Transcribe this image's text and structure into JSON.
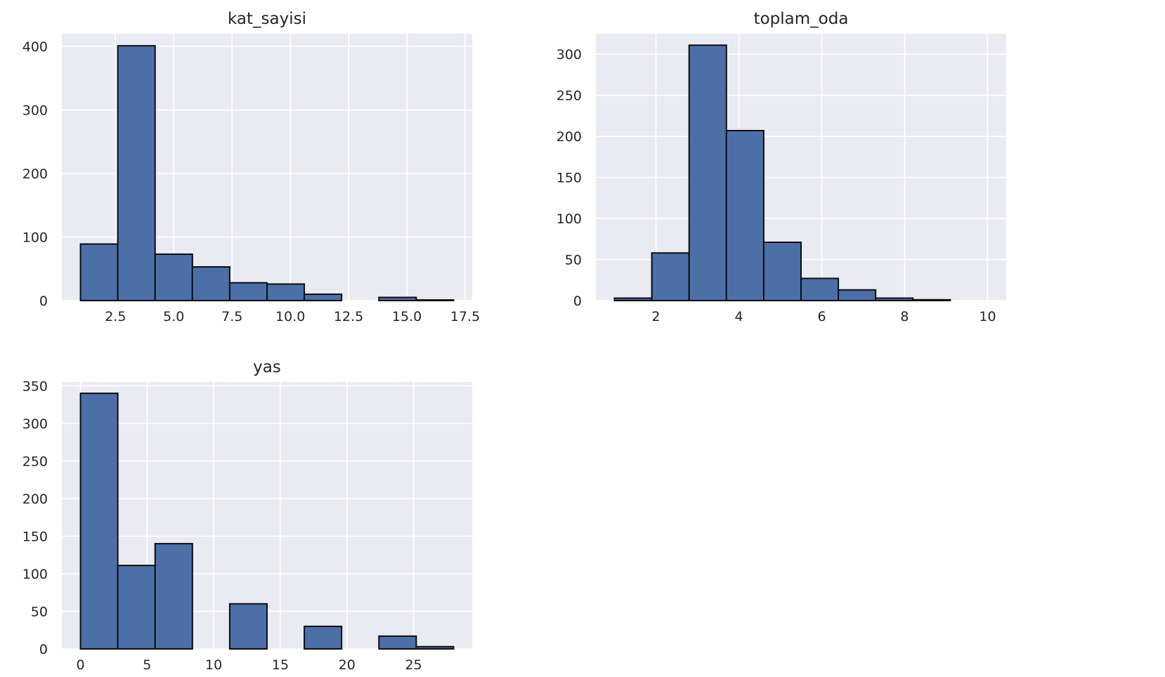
{
  "colors": {
    "axes_bg": "#eaeaf2",
    "grid": "#ffffff",
    "bar_fill": "#4c6fa8",
    "bar_edge": "#0d0d0d",
    "text": "#262626"
  },
  "chart_data": [
    {
      "type": "bar",
      "title": "kat_sayisi",
      "xlabel": "",
      "ylabel": "",
      "xlim": [
        0.2,
        17.8
      ],
      "ylim": [
        0,
        420
      ],
      "xticks": [
        2.5,
        5.0,
        7.5,
        10.0,
        12.5,
        15.0,
        17.5
      ],
      "xtick_labels": [
        "2.5",
        "5.0",
        "7.5",
        "10.0",
        "12.5",
        "15.0",
        "17.5"
      ],
      "yticks": [
        0,
        100,
        200,
        300,
        400
      ],
      "ytick_labels": [
        "0",
        "100",
        "200",
        "300",
        "400"
      ],
      "bin_edges": [
        1.0,
        2.6,
        4.2,
        5.8,
        7.4,
        9.0,
        10.6,
        12.2,
        13.8,
        15.4,
        17.0
      ],
      "values": [
        89,
        401,
        73,
        53,
        28,
        26,
        10,
        0,
        5,
        1
      ],
      "grid": true
    },
    {
      "type": "bar",
      "title": "toplam_oda",
      "xlabel": "",
      "ylabel": "",
      "xlim": [
        0.55,
        10.45
      ],
      "ylim": [
        0,
        325
      ],
      "xticks": [
        2,
        4,
        6,
        8,
        10
      ],
      "xtick_labels": [
        "2",
        "4",
        "6",
        "8",
        "10"
      ],
      "yticks": [
        0,
        50,
        100,
        150,
        200,
        250,
        300
      ],
      "ytick_labels": [
        "0",
        "50",
        "100",
        "150",
        "200",
        "250",
        "300"
      ],
      "bin_edges": [
        1.0,
        1.9,
        2.8,
        3.7,
        4.6,
        5.5,
        6.4,
        7.3,
        8.2,
        9.1,
        10.0
      ],
      "values": [
        3,
        58,
        311,
        207,
        71,
        27,
        13,
        3,
        1,
        0
      ],
      "grid": true
    },
    {
      "type": "bar",
      "title": "yas",
      "xlabel": "",
      "ylabel": "",
      "xlim": [
        -1.4,
        29.4
      ],
      "ylim": [
        0,
        355
      ],
      "xticks": [
        0,
        5,
        10,
        15,
        20,
        25
      ],
      "xtick_labels": [
        "0",
        "5",
        "10",
        "15",
        "20",
        "25"
      ],
      "yticks": [
        0,
        50,
        100,
        150,
        200,
        250,
        300,
        350
      ],
      "ytick_labels": [
        "0",
        "50",
        "100",
        "150",
        "200",
        "250",
        "300",
        "350"
      ],
      "bin_edges": [
        0.0,
        2.8,
        5.6,
        8.4,
        11.2,
        14.0,
        16.8,
        19.6,
        22.4,
        25.2,
        28.0
      ],
      "values": [
        340,
        111,
        140,
        0,
        60,
        0,
        30,
        0,
        17,
        3
      ],
      "grid": true
    }
  ]
}
